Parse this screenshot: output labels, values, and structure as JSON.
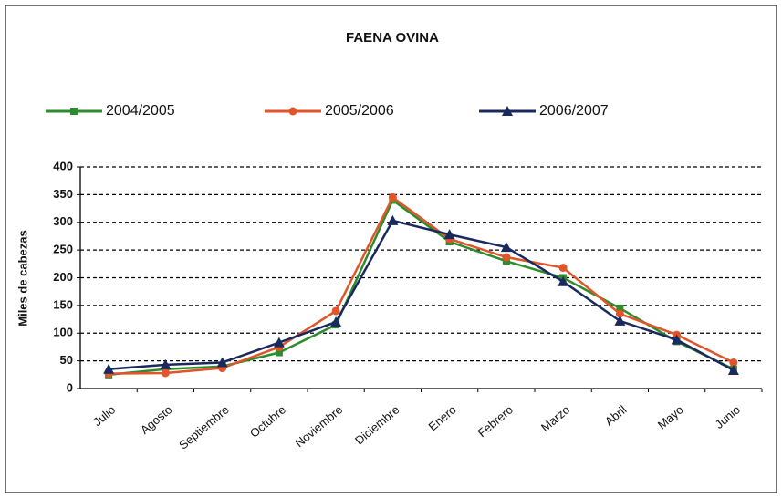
{
  "chart_data": {
    "type": "line",
    "title": "FAENA OVINA",
    "y_label": "Miles de cabezas",
    "categories": [
      "Julio",
      "Agosto",
      "Septiembre",
      "Octubre",
      "Noviembre",
      "Diciembre",
      "Enero",
      "Febrero",
      "Marzo",
      "Abril",
      "Mayo",
      "Junio"
    ],
    "series": [
      {
        "name": "2004/2005",
        "color": "#2e8b2e",
        "marker": "square",
        "values": [
          25,
          35,
          40,
          65,
          115,
          340,
          265,
          230,
          200,
          145,
          85,
          35
        ]
      },
      {
        "name": "2005/2006",
        "color": "#e0552a",
        "marker": "circle",
        "values": [
          27,
          28,
          37,
          75,
          140,
          345,
          270,
          237,
          218,
          135,
          97,
          47
        ]
      },
      {
        "name": "2006/2007",
        "color": "#1a2a5e",
        "marker": "triangle",
        "values": [
          35,
          43,
          47,
          83,
          120,
          303,
          278,
          255,
          193,
          122,
          88,
          33
        ]
      }
    ],
    "ylim": [
      0,
      400
    ],
    "yticks": [
      0,
      50,
      100,
      150,
      200,
      250,
      300,
      350,
      400
    ],
    "grid": true
  }
}
